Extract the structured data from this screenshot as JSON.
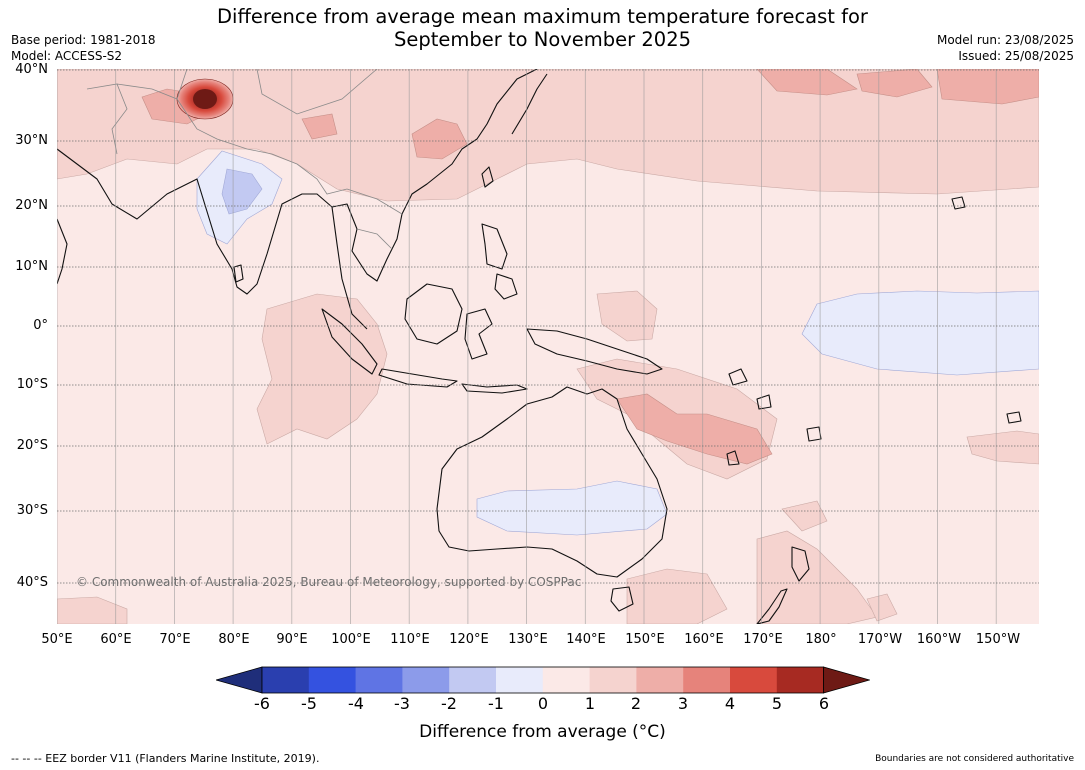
{
  "title": {
    "line1": "Difference from average mean maximum temperature forecast for",
    "line2": "September to November 2025"
  },
  "meta": {
    "base_period": "Base period: 1981-2018",
    "model": "Model: ACCESS-S2",
    "model_run": "Model run: 23/08/2025",
    "issued": "Issued: 25/08/2025"
  },
  "map": {
    "latitude_labels": [
      "40°N",
      "30°N",
      "20°N",
      "10°N",
      "0°",
      "10°S",
      "20°S",
      "30°S",
      "40°S"
    ],
    "longitude_labels": [
      "50°E",
      "60°E",
      "70°E",
      "80°E",
      "90°E",
      "100°E",
      "110°E",
      "120°E",
      "130°E",
      "140°E",
      "150°E",
      "160°E",
      "170°E",
      "180°",
      "170°W",
      "160°W",
      "150°W"
    ],
    "copyright": "© Commonwealth of Australia 2025, Bureau of Meteorology, supported by COSPPac",
    "background_anomaly_color": "#fbe9e7"
  },
  "colorbar": {
    "ticks": [
      "-6",
      "-5",
      "-4",
      "-3",
      "-2",
      "-1",
      "0",
      "1",
      "2",
      "3",
      "4",
      "5",
      "6"
    ],
    "colors": [
      "#1f2e7a",
      "#2a3faf",
      "#3452e0",
      "#5f74e4",
      "#8c9bea",
      "#c2c9f2",
      "#e8ebfb",
      "#fbe9e7",
      "#f5d3cf",
      "#eeaea8",
      "#e6837b",
      "#d84a3d",
      "#a72a22",
      "#6e1a15"
    ],
    "label": "Difference from average (°C)"
  },
  "footer": {
    "eez_note": "--  --  -- EEZ border V11 (Flanders Marine Institute, 2019).",
    "disclaimer": "Boundaries are not considered authoritative"
  }
}
